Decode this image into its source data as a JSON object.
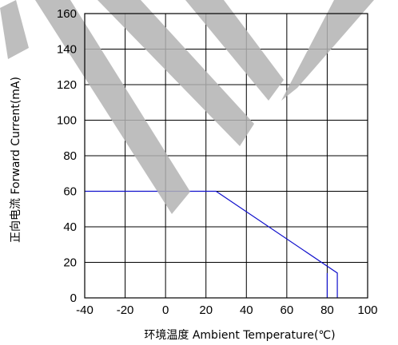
{
  "chart_data": {
    "type": "line",
    "xlabel": "环境温度  Ambient Temperature(℃)",
    "ylabel": "正向电流 Forward Current(mA)",
    "xlim": [
      -40,
      100
    ],
    "ylim": [
      0,
      160
    ],
    "x_ticks": [
      "-40",
      "-20",
      "0",
      "20",
      "40",
      "60",
      "80",
      "100"
    ],
    "y_ticks": [
      "0",
      "20",
      "40",
      "60",
      "80",
      "100",
      "120",
      "140",
      "160"
    ],
    "grid": true,
    "series": [
      {
        "color": "#1010cc",
        "points": [
          [
            -40,
            60
          ],
          [
            25,
            60
          ],
          [
            85,
            14
          ],
          [
            85,
            0
          ]
        ]
      }
    ],
    "watermark_color": "#b3b3b3"
  }
}
